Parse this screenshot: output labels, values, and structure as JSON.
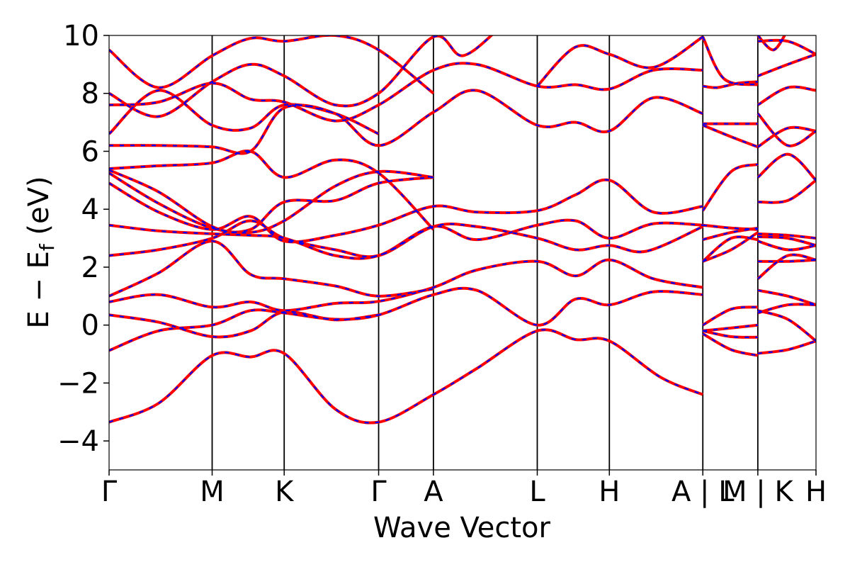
{
  "chart_data": {
    "type": "line",
    "xlabel": "Wave Vector",
    "ylabel": "E − E",
    "ylabel_sub": "f",
    "ylabel_unit": " (eV)",
    "ylim": [
      -5,
      10
    ],
    "xlim": [
      0,
      1
    ],
    "yticks": [
      -4,
      -2,
      0,
      2,
      4,
      6,
      8,
      10
    ],
    "ytick_labels": [
      "−4",
      "−2",
      "0",
      "2",
      "4",
      "6",
      "8",
      "10"
    ],
    "kpoints": [
      {
        "label": "Γ",
        "x": 0.0
      },
      {
        "label": "M",
        "x": 0.1458
      },
      {
        "label": "K",
        "x": 0.2477
      },
      {
        "label": "Γ",
        "x": 0.3813
      },
      {
        "label": "A",
        "x": 0.4588
      },
      {
        "label": "L",
        "x": 0.6057
      },
      {
        "label": "H",
        "x": 0.7077
      },
      {
        "label": "A | L",
        "x": 0.8399
      },
      {
        "label": "M | K",
        "x": 0.9177
      },
      {
        "label": "H",
        "x": 1.0
      }
    ],
    "segment_breaks": [
      0.8399,
      0.9177
    ],
    "colors": {
      "up": "#0000ff",
      "down": "#ff0000",
      "vline": "#000000"
    },
    "bands": [
      [
        [
          0,
          -3.35
        ],
        [
          0.07,
          -2.7
        ],
        [
          0.1458,
          -1.05
        ],
        [
          0.2,
          -1.1
        ],
        [
          0.2477,
          -0.98
        ],
        [
          0.32,
          -2.9
        ],
        [
          0.3813,
          -3.35
        ],
        [
          0.4588,
          -2.4
        ],
        [
          0.52,
          -1.5
        ],
        [
          0.6057,
          -0.2
        ],
        [
          0.66,
          -0.5
        ],
        [
          0.7077,
          -0.55
        ],
        [
          0.78,
          -1.8
        ],
        [
          0.8399,
          -2.4
        ]
      ],
      [
        [
          0,
          -0.88
        ],
        [
          0.07,
          -0.2
        ],
        [
          0.1458,
          0.0
        ],
        [
          0.2,
          0.5
        ],
        [
          0.2477,
          0.42
        ],
        [
          0.32,
          0.2
        ],
        [
          0.3813,
          0.35
        ],
        [
          0.4588,
          1.05
        ],
        [
          0.52,
          1.2
        ],
        [
          0.6057,
          0.0
        ],
        [
          0.66,
          0.9
        ],
        [
          0.7077,
          0.7
        ],
        [
          0.77,
          1.15
        ],
        [
          0.8399,
          1.05
        ]
      ],
      [
        [
          0,
          0.35
        ],
        [
          0.07,
          0.1
        ],
        [
          0.1458,
          -0.4
        ],
        [
          0.2,
          -0.2
        ],
        [
          0.2477,
          0.45
        ],
        [
          0.32,
          0.18
        ],
        [
          0.3813,
          0.35
        ]
      ],
      [
        [
          0,
          0.8
        ],
        [
          0.07,
          1.05
        ],
        [
          0.1458,
          0.62
        ],
        [
          0.2,
          0.8
        ],
        [
          0.2477,
          0.5
        ],
        [
          0.32,
          0.75
        ],
        [
          0.3813,
          0.82
        ],
        [
          0.4588,
          1.3
        ],
        [
          0.52,
          1.9
        ],
        [
          0.6057,
          2.2
        ],
        [
          0.66,
          1.7
        ],
        [
          0.7077,
          2.25
        ],
        [
          0.77,
          1.6
        ],
        [
          0.8399,
          1.3
        ]
      ],
      [
        [
          0,
          1.0
        ],
        [
          0.07,
          1.8
        ],
        [
          0.1458,
          2.9
        ],
        [
          0.2,
          1.75
        ],
        [
          0.2477,
          1.6
        ],
        [
          0.32,
          1.35
        ],
        [
          0.3813,
          1.0
        ],
        [
          0.4588,
          1.25
        ]
      ],
      [
        [
          0,
          2.4
        ],
        [
          0.07,
          2.6
        ],
        [
          0.1458,
          3.0
        ],
        [
          0.2,
          3.6
        ],
        [
          0.2477,
          3.0
        ],
        [
          0.32,
          2.6
        ],
        [
          0.3813,
          2.4
        ],
        [
          0.4588,
          3.4
        ],
        [
          0.52,
          3.4
        ],
        [
          0.6057,
          3.0
        ],
        [
          0.66,
          2.6
        ],
        [
          0.7077,
          2.75
        ],
        [
          0.76,
          2.55
        ],
        [
          0.8399,
          3.4
        ]
      ],
      [
        [
          0,
          3.45
        ],
        [
          0.07,
          3.25
        ],
        [
          0.1458,
          3.15
        ],
        [
          0.2,
          3.1
        ],
        [
          0.2477,
          3.0
        ],
        [
          0.32,
          2.4
        ],
        [
          0.3813,
          2.4
        ],
        [
          0.4588,
          3.4
        ],
        [
          0.52,
          2.95
        ],
        [
          0.6057,
          3.45
        ],
        [
          0.66,
          3.6
        ],
        [
          0.7077,
          3.0
        ],
        [
          0.77,
          3.5
        ],
        [
          0.8399,
          3.45
        ]
      ],
      [
        [
          0,
          4.9
        ],
        [
          0.07,
          3.9
        ],
        [
          0.1458,
          3.3
        ],
        [
          0.2,
          3.75
        ],
        [
          0.2477,
          2.9
        ],
        [
          0.32,
          3.1
        ],
        [
          0.3813,
          3.45
        ],
        [
          0.4588,
          4.1
        ],
        [
          0.52,
          3.9
        ],
        [
          0.6057,
          3.95
        ],
        [
          0.66,
          4.5
        ],
        [
          0.7077,
          5.0
        ],
        [
          0.77,
          3.9
        ],
        [
          0.8399,
          4.1
        ]
      ],
      [
        [
          0,
          5.25
        ],
        [
          0.07,
          4.2
        ],
        [
          0.1458,
          3.35
        ],
        [
          0.2,
          3.3
        ],
        [
          0.2477,
          4.25
        ],
        [
          0.32,
          4.3
        ],
        [
          0.3813,
          4.9
        ],
        [
          0.4588,
          5.1
        ]
      ],
      [
        [
          0,
          5.35
        ],
        [
          0.07,
          4.6
        ],
        [
          0.1458,
          3.4
        ],
        [
          0.2,
          3.2
        ],
        [
          0.2477,
          3.6
        ],
        [
          0.32,
          4.8
        ],
        [
          0.3813,
          5.3
        ],
        [
          0.4588,
          5.1
        ]
      ],
      [
        [
          0,
          5.4
        ],
        [
          0.07,
          5.5
        ],
        [
          0.1458,
          5.6
        ],
        [
          0.2,
          6.0
        ],
        [
          0.2477,
          5.1
        ],
        [
          0.32,
          5.7
        ],
        [
          0.3813,
          5.25
        ],
        [
          0.4588,
          3.3
        ]
      ],
      [
        [
          0,
          6.2
        ],
        [
          0.07,
          6.2
        ],
        [
          0.1458,
          6.15
        ],
        [
          0.2,
          6.0
        ],
        [
          0.2477,
          7.5
        ],
        [
          0.32,
          7.3
        ],
        [
          0.3813,
          6.2
        ],
        [
          0.4588,
          7.35
        ],
        [
          0.52,
          8.1
        ],
        [
          0.6057,
          6.9
        ],
        [
          0.66,
          7.0
        ],
        [
          0.7077,
          6.7
        ],
        [
          0.77,
          7.85
        ],
        [
          0.8399,
          7.3
        ]
      ],
      [
        [
          0,
          6.6
        ],
        [
          0.07,
          8.1
        ],
        [
          0.1458,
          6.9
        ],
        [
          0.2,
          6.8
        ],
        [
          0.2477,
          7.6
        ],
        [
          0.32,
          7.3
        ],
        [
          0.3813,
          6.6
        ]
      ],
      [
        [
          0,
          7.6
        ],
        [
          0.07,
          7.7
        ],
        [
          0.1458,
          8.35
        ],
        [
          0.2,
          7.8
        ],
        [
          0.2477,
          7.7
        ],
        [
          0.32,
          7.05
        ],
        [
          0.3813,
          7.6
        ],
        [
          0.4588,
          8.8
        ],
        [
          0.52,
          9.0
        ],
        [
          0.6057,
          8.25
        ],
        [
          0.66,
          8.3
        ],
        [
          0.7077,
          8.15
        ],
        [
          0.77,
          8.8
        ],
        [
          0.8399,
          8.8
        ]
      ],
      [
        [
          0,
          8.0
        ],
        [
          0.07,
          7.2
        ],
        [
          0.1458,
          8.4
        ],
        [
          0.2,
          9.0
        ],
        [
          0.2477,
          8.6
        ],
        [
          0.32,
          7.6
        ],
        [
          0.3813,
          8.0
        ],
        [
          0.4588,
          9.95
        ],
        [
          0.5,
          9.3
        ],
        [
          0.55,
          10.2
        ]
      ],
      [
        [
          0,
          9.5
        ],
        [
          0.07,
          8.2
        ],
        [
          0.1458,
          9.3
        ],
        [
          0.2,
          9.9
        ],
        [
          0.2477,
          9.8
        ],
        [
          0.32,
          10.0
        ],
        [
          0.3813,
          9.5
        ],
        [
          0.4588,
          8.0
        ]
      ],
      [
        [
          0.6057,
          8.25
        ],
        [
          0.66,
          9.6
        ],
        [
          0.7077,
          9.35
        ],
        [
          0.77,
          8.9
        ],
        [
          0.8399,
          9.95
        ]
      ],
      [
        [
          0.8399,
          8.25
        ],
        [
          0.86,
          8.2
        ],
        [
          0.89,
          8.35
        ],
        [
          0.9177,
          8.4
        ]
      ],
      [
        [
          0.8399,
          9.95
        ],
        [
          0.87,
          8.5
        ],
        [
          0.9177,
          8.3
        ]
      ],
      [
        [
          0.8399,
          6.95
        ],
        [
          0.88,
          6.95
        ],
        [
          0.9177,
          6.95
        ]
      ],
      [
        [
          0.8399,
          6.9
        ],
        [
          0.88,
          6.5
        ],
        [
          0.9177,
          6.15
        ]
      ],
      [
        [
          0.8399,
          3.95
        ],
        [
          0.88,
          5.3
        ],
        [
          0.9177,
          5.55
        ]
      ],
      [
        [
          0.8399,
          3.45
        ],
        [
          0.88,
          3.35
        ],
        [
          0.9177,
          3.3
        ]
      ],
      [
        [
          0.8399,
          2.95
        ],
        [
          0.88,
          3.2
        ],
        [
          0.9177,
          3.35
        ]
      ],
      [
        [
          0.8399,
          2.2
        ],
        [
          0.88,
          2.6
        ],
        [
          0.9177,
          3.2
        ]
      ],
      [
        [
          0.8399,
          2.2
        ],
        [
          0.88,
          3.0
        ],
        [
          0.9177,
          2.95
        ]
      ],
      [
        [
          0.8399,
          0.0
        ],
        [
          0.88,
          0.55
        ],
        [
          0.9177,
          0.62
        ]
      ],
      [
        [
          0.8399,
          -0.2
        ],
        [
          0.88,
          -0.1
        ],
        [
          0.9177,
          0.0
        ]
      ],
      [
        [
          0.8399,
          -0.2
        ],
        [
          0.88,
          -0.4
        ],
        [
          0.9177,
          -0.42
        ]
      ],
      [
        [
          0.8399,
          -0.3
        ],
        [
          0.88,
          -0.85
        ],
        [
          0.9177,
          -1.05
        ]
      ],
      [
        [
          0.9177,
          -0.98
        ],
        [
          0.96,
          -0.85
        ],
        [
          1.0,
          -0.55
        ]
      ],
      [
        [
          0.9177,
          0.42
        ],
        [
          0.96,
          0.7
        ],
        [
          1.0,
          0.7
        ]
      ],
      [
        [
          0.9177,
          0.5
        ],
        [
          0.96,
          0.2
        ],
        [
          1.0,
          -0.55
        ]
      ],
      [
        [
          0.9177,
          1.2
        ],
        [
          0.96,
          1.0
        ],
        [
          1.0,
          0.7
        ]
      ],
      [
        [
          0.9177,
          1.6
        ],
        [
          0.96,
          2.4
        ],
        [
          1.0,
          2.25
        ]
      ],
      [
        [
          0.9177,
          2.2
        ],
        [
          0.96,
          2.2
        ],
        [
          1.0,
          2.25
        ]
      ],
      [
        [
          0.9177,
          2.9
        ],
        [
          0.96,
          2.6
        ],
        [
          1.0,
          2.75
        ]
      ],
      [
        [
          0.9177,
          3.05
        ],
        [
          0.96,
          3.0
        ],
        [
          1.0,
          2.75
        ]
      ],
      [
        [
          0.9177,
          3.15
        ],
        [
          0.96,
          3.1
        ],
        [
          1.0,
          3.0
        ]
      ],
      [
        [
          0.9177,
          4.25
        ],
        [
          0.96,
          4.3
        ],
        [
          1.0,
          5.0
        ]
      ],
      [
        [
          0.9177,
          5.1
        ],
        [
          0.96,
          5.9
        ],
        [
          1.0,
          5.0
        ]
      ],
      [
        [
          0.9177,
          6.15
        ],
        [
          0.96,
          6.8
        ],
        [
          1.0,
          6.7
        ]
      ],
      [
        [
          0.9177,
          7.3
        ],
        [
          0.96,
          6.2
        ],
        [
          1.0,
          6.7
        ]
      ],
      [
        [
          0.9177,
          7.6
        ],
        [
          0.96,
          8.2
        ],
        [
          1.0,
          8.1
        ]
      ],
      [
        [
          0.9177,
          8.6
        ],
        [
          0.96,
          9.0
        ],
        [
          1.0,
          9.35
        ]
      ],
      [
        [
          0.9177,
          9.8
        ],
        [
          0.96,
          9.8
        ],
        [
          1.0,
          9.35
        ]
      ],
      [
        [
          0.9177,
          10.0
        ],
        [
          0.94,
          9.5
        ],
        [
          0.96,
          10.2
        ]
      ]
    ]
  }
}
